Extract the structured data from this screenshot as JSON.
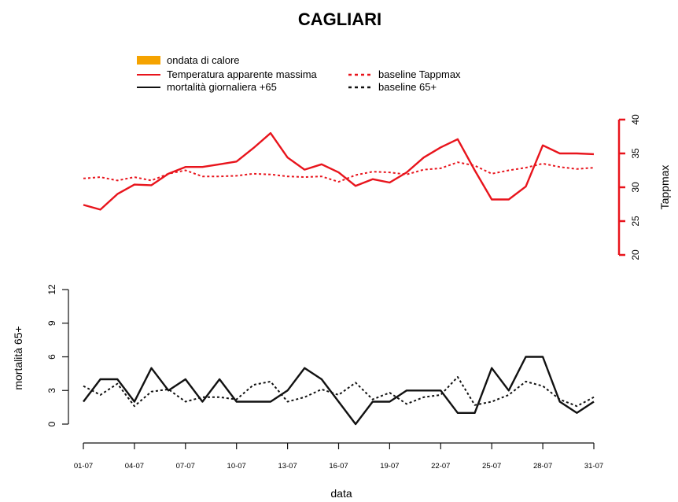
{
  "chart_data": {
    "title": "CAGLIARI",
    "xlabel": "data",
    "x_categories": [
      "01-07",
      "02-07",
      "03-07",
      "04-07",
      "05-07",
      "06-07",
      "07-07",
      "08-07",
      "09-07",
      "10-07",
      "11-07",
      "12-07",
      "13-07",
      "14-07",
      "15-07",
      "16-07",
      "17-07",
      "18-07",
      "19-07",
      "20-07",
      "21-07",
      "22-07",
      "23-07",
      "24-07",
      "25-07",
      "26-07",
      "27-07",
      "28-07",
      "29-07",
      "30-07",
      "31-07"
    ],
    "x_tick_labels": [
      "01-07",
      "04-07",
      "07-07",
      "10-07",
      "13-07",
      "16-07",
      "19-07",
      "22-07",
      "25-07",
      "28-07",
      "31-07"
    ],
    "legend": {
      "heatwave": "ondata di calore",
      "tappmax": "Temperatura apparente massima",
      "baseline_tappmax": "baseline Tappmax",
      "mortality": "mortalità giornaliera +65",
      "baseline_mortality": "baseline 65+"
    },
    "colors": {
      "red": "#e8141c",
      "black": "#111111",
      "heatwave": "#f5a300"
    },
    "charts": [
      {
        "type": "line",
        "ylabel": "Tappmax",
        "ylim": [
          20,
          40
        ],
        "yticks": [
          20,
          25,
          30,
          35,
          40
        ],
        "y_axis_side": "right",
        "series": [
          {
            "name": "Temperatura apparente massima",
            "style": "solid",
            "color": "#e8141c",
            "values": [
              27.4,
              26.7,
              29.0,
              30.4,
              30.3,
              32.0,
              33.0,
              33.0,
              33.4,
              33.8,
              35.8,
              38.0,
              34.4,
              32.6,
              33.4,
              32.2,
              30.2,
              31.2,
              30.7,
              32.2,
              34.4,
              35.9,
              37.1,
              32.5,
              28.2,
              28.2,
              30.1,
              36.2,
              35.0,
              35.0,
              34.9
            ]
          },
          {
            "name": "baseline Tappmax",
            "style": "dotted",
            "color": "#e8141c",
            "values": [
              31.3,
              31.5,
              31.0,
              31.5,
              31.0,
              32.0,
              32.5,
              31.6,
              31.6,
              31.7,
              32.0,
              31.9,
              31.6,
              31.5,
              31.6,
              30.8,
              31.8,
              32.3,
              32.2,
              31.9,
              32.6,
              32.8,
              33.7,
              33.2,
              32.0,
              32.5,
              32.9,
              33.5,
              33.0,
              32.7,
              32.9
            ]
          }
        ]
      },
      {
        "type": "line",
        "ylabel": "mortalità 65+",
        "ylim": [
          0,
          12
        ],
        "yticks": [
          0,
          3,
          6,
          9,
          12
        ],
        "y_axis_side": "left",
        "series": [
          {
            "name": "mortalità giornaliera +65",
            "style": "solid",
            "color": "#111111",
            "values": [
              2,
              4,
              4,
              2,
              5,
              3,
              4,
              2,
              4,
              2,
              2,
              2,
              3,
              5,
              4,
              2,
              0,
              2,
              2,
              3,
              3,
              3,
              1,
              1,
              5,
              3,
              6,
              6,
              2,
              1,
              2
            ]
          },
          {
            "name": "baseline 65+",
            "style": "dotted",
            "color": "#111111",
            "values": [
              3.4,
              2.6,
              3.6,
              1.6,
              2.9,
              3.1,
              2.0,
              2.4,
              2.4,
              2.2,
              3.5,
              3.8,
              2.0,
              2.4,
              3.1,
              2.6,
              3.7,
              2.2,
              2.8,
              1.8,
              2.4,
              2.6,
              4.2,
              1.7,
              2.0,
              2.6,
              3.8,
              3.4,
              2.2,
              1.6,
              2.4
            ]
          }
        ]
      }
    ]
  }
}
